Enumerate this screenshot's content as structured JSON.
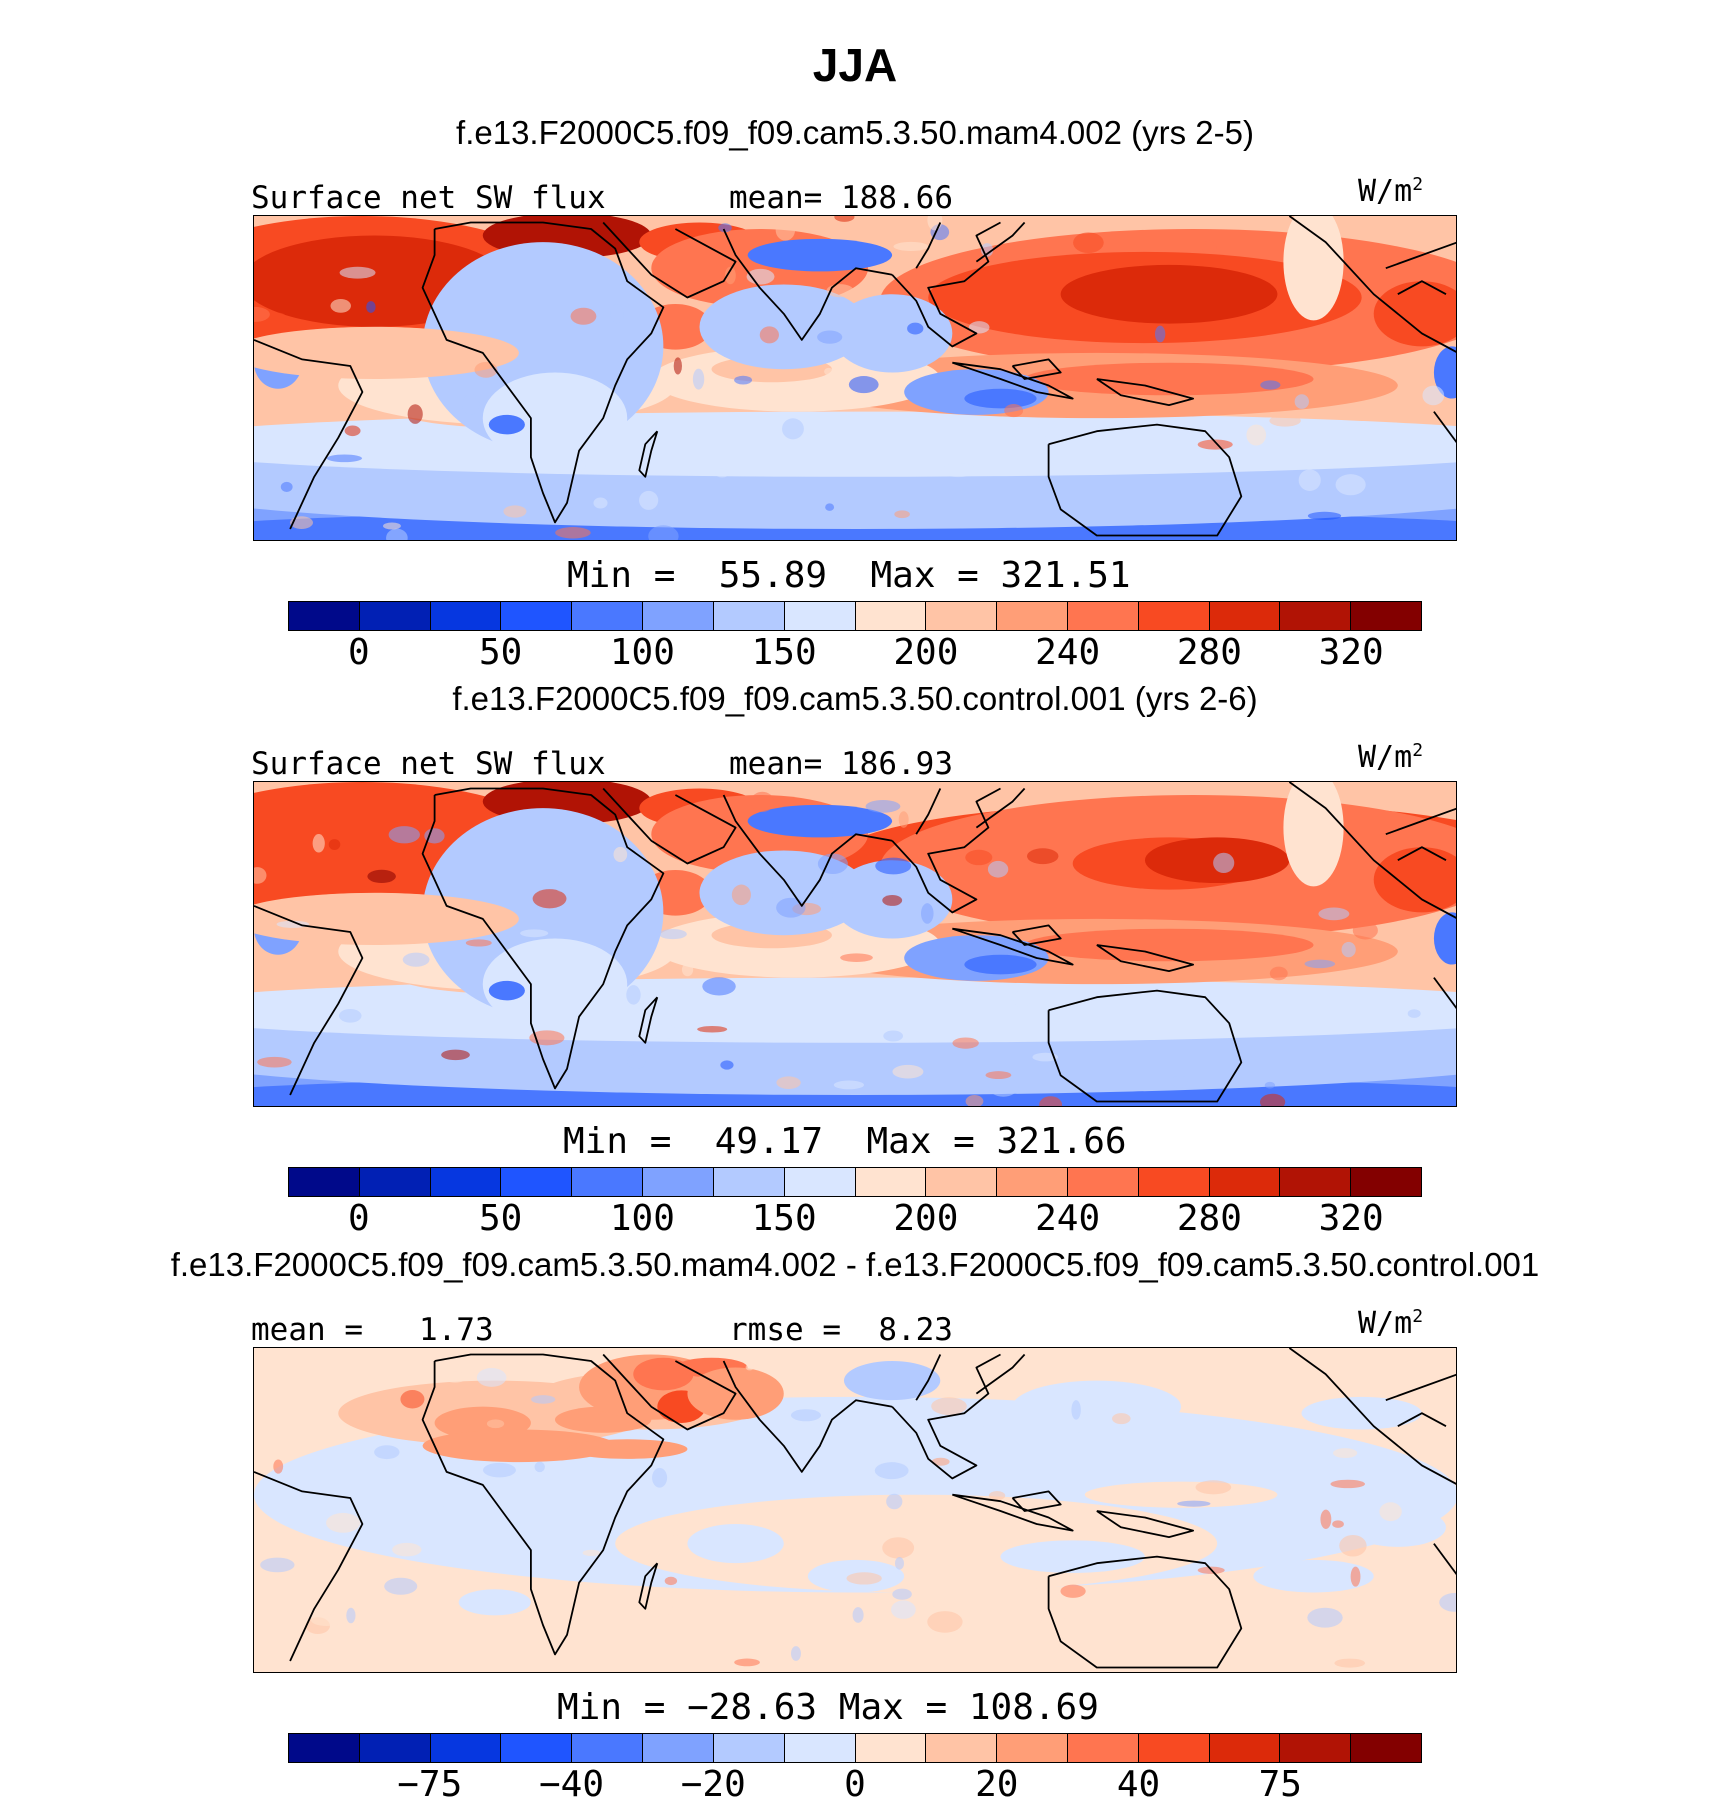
{
  "title": "JJA",
  "palette": [
    "#00098a",
    "#0120b4",
    "#0637e0",
    "#1f55ff",
    "#4a78ff",
    "#7fa2ff",
    "#b3caff",
    "#d9e6ff",
    "#ffe3d0",
    "#ffc4a6",
    "#ff9e77",
    "#ff7550",
    "#f84a22",
    "#dc2a0a",
    "#b11305",
    "#830000"
  ],
  "chart_data": [
    {
      "type": "heatmap",
      "case": "f.e13.F2000C5.f09_f09.cam5.3.50.mam4.002 (yrs 2-5)",
      "variable": "Surface net SW flux",
      "stat_label": "mean=",
      "stat_value": "188.66",
      "units": "W/m",
      "units_sup": "2",
      "min_label": "Min =",
      "min_value": "55.89",
      "max_label": "Max =",
      "max_value": "321.51",
      "levels": [
        "0",
        "50",
        "100",
        "150",
        "200",
        "240",
        "280",
        "320"
      ],
      "value_range": [
        55.89,
        321.51
      ]
    },
    {
      "type": "heatmap",
      "case": "f.e13.F2000C5.f09_f09.cam5.3.50.control.001 (yrs 2-6)",
      "variable": "Surface net SW flux",
      "stat_label": "mean=",
      "stat_value": "186.93",
      "units": "W/m",
      "units_sup": "2",
      "min_label": "Min =",
      "min_value": "49.17",
      "max_label": "Max =",
      "max_value": "321.66",
      "levels": [
        "0",
        "50",
        "100",
        "150",
        "200",
        "240",
        "280",
        "320"
      ],
      "value_range": [
        49.17,
        321.66
      ]
    },
    {
      "type": "heatmap",
      "case": "f.e13.F2000C5.f09_f09.cam5.3.50.mam4.002 - f.e13.F2000C5.f09_f09.cam5.3.50.control.001",
      "variable": "mean =",
      "stat_value_left": "1.73",
      "stat_label": "rmse =",
      "stat_value": "8.23",
      "units": "W/m",
      "units_sup": "2",
      "min_label": "Min =",
      "min_value": "−28.63",
      "max_label": "Max =",
      "max_value": "108.69",
      "levels": [
        "−75",
        "−40",
        "−20",
        "0",
        "20",
        "40",
        "75"
      ],
      "value_range": [
        -28.63,
        108.69
      ]
    }
  ]
}
